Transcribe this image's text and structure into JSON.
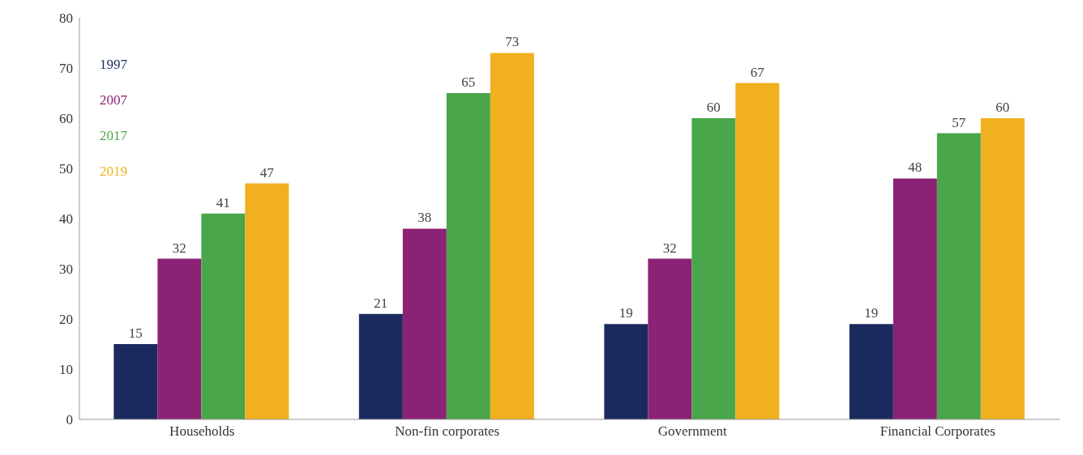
{
  "chart_data": {
    "type": "bar",
    "categories": [
      "Households",
      "Non-fin corporates",
      "Government",
      "Financial Corporates"
    ],
    "series": [
      {
        "name": "1997",
        "color": "#1b2a5e",
        "values": [
          15,
          21,
          19,
          19
        ]
      },
      {
        "name": "2007",
        "color": "#8b2275",
        "values": [
          32,
          38,
          32,
          48
        ]
      },
      {
        "name": "2017",
        "color": "#4aa64a",
        "values": [
          41,
          65,
          60,
          57
        ]
      },
      {
        "name": "2019",
        "color": "#f0b020",
        "values": [
          47,
          73,
          67,
          60
        ]
      }
    ],
    "ylim": [
      0,
      80
    ],
    "yticks": [
      0,
      10,
      20,
      30,
      40,
      50,
      60,
      70,
      80
    ],
    "grid": false,
    "legend": "top left",
    "data_labels": true
  }
}
